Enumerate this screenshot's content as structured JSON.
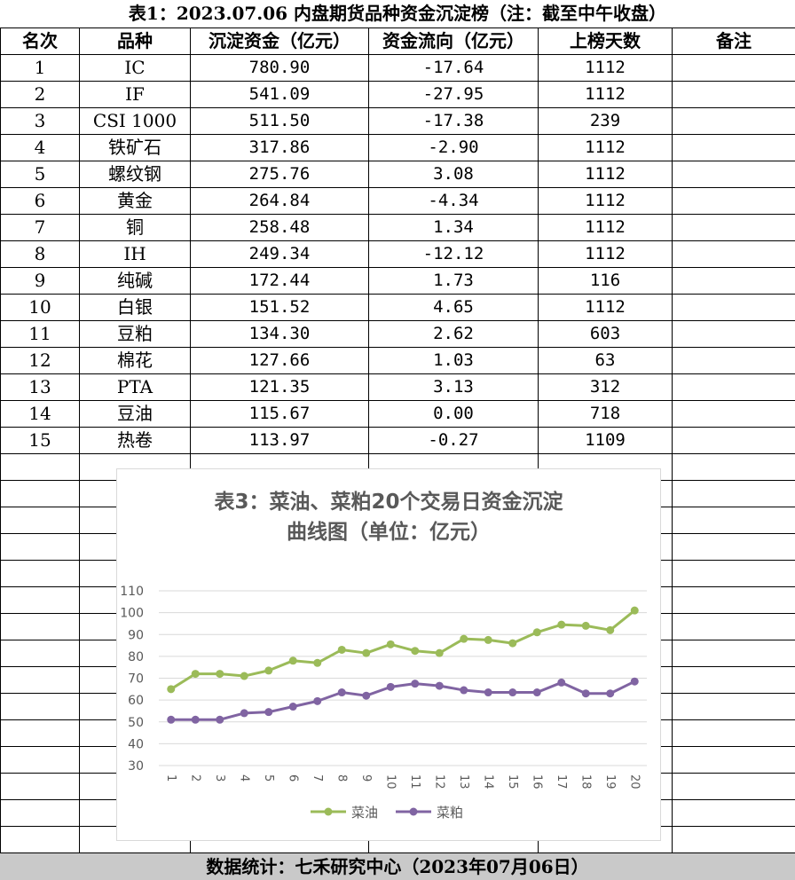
{
  "title": "表1：2023.07.06 内盘期货品种资金沉淀榜（注：截至中午收盘）",
  "table": {
    "headers": [
      "名次",
      "品种",
      "沉淀资金（亿元）",
      "资金流向（亿元）",
      "上榜天数",
      "备注"
    ],
    "rows": [
      [
        "1",
        "IC",
        "780.90",
        "-17.64",
        "1112",
        ""
      ],
      [
        "2",
        "IF",
        "541.09",
        "-27.95",
        "1112",
        ""
      ],
      [
        "3",
        "CSI 1000",
        "511.50",
        "-17.38",
        "239",
        ""
      ],
      [
        "4",
        "铁矿石",
        "317.86",
        "-2.90",
        "1112",
        ""
      ],
      [
        "5",
        "螺纹钢",
        "275.76",
        "3.08",
        "1112",
        ""
      ],
      [
        "6",
        "黄金",
        "264.84",
        "-4.34",
        "1112",
        ""
      ],
      [
        "7",
        "铜",
        "258.48",
        "1.34",
        "1112",
        ""
      ],
      [
        "8",
        "IH",
        "249.34",
        "-12.12",
        "1112",
        ""
      ],
      [
        "9",
        "纯碱",
        "172.44",
        "1.73",
        "116",
        ""
      ],
      [
        "10",
        "白银",
        "151.52",
        "4.65",
        "1112",
        ""
      ],
      [
        "11",
        "豆粕",
        "134.30",
        "2.62",
        "603",
        ""
      ],
      [
        "12",
        "棉花",
        "127.66",
        "1.03",
        "63",
        ""
      ],
      [
        "13",
        "PTA",
        "121.35",
        "3.13",
        "312",
        ""
      ],
      [
        "14",
        "豆油",
        "115.67",
        "0.00",
        "718",
        ""
      ],
      [
        "15",
        "热卷",
        "113.97",
        "-0.27",
        "1109",
        ""
      ]
    ],
    "empty_rows": 15
  },
  "chart_data": {
    "type": "line",
    "title_lines": [
      "表3：菜油、菜粕20个交易日资金沉淀",
      "曲线图（单位：亿元）"
    ],
    "x": [
      "1",
      "2",
      "3",
      "4",
      "5",
      "6",
      "7",
      "8",
      "9",
      "10",
      "11",
      "12",
      "13",
      "14",
      "15",
      "16",
      "17",
      "18",
      "19",
      "20"
    ],
    "ylim": [
      30,
      110
    ],
    "yticks": [
      30,
      40,
      50,
      60,
      70,
      80,
      90,
      100,
      110
    ],
    "grid": true,
    "legend": "bottom",
    "series": [
      {
        "name": "菜油",
        "color": "#9bbb59",
        "values": [
          65,
          72,
          72,
          71,
          73.5,
          78,
          77,
          83,
          81.5,
          85.5,
          82.5,
          81.5,
          88,
          87.5,
          86,
          91,
          94.5,
          94,
          92,
          101
        ]
      },
      {
        "name": "菜粕",
        "color": "#8064a2",
        "values": [
          51,
          51,
          51,
          54,
          54.5,
          57,
          59.5,
          63.5,
          62,
          66,
          67.5,
          66.5,
          64.5,
          63.5,
          63.5,
          63.5,
          68,
          63,
          63,
          68.5
        ]
      }
    ]
  },
  "footer": "数据统计：七禾研究中心（2023年07月06日）"
}
